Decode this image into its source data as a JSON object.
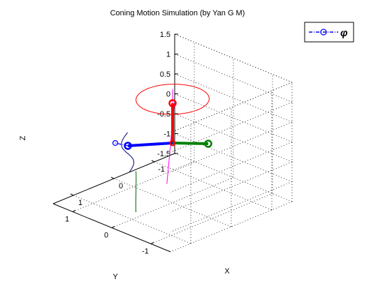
{
  "chart_data": {
    "type": "3d-line",
    "title": "Coning Motion Simulation (by Yan G M)",
    "xlabel": "X",
    "ylabel": "Y",
    "zlabel": "Z",
    "xlim": [
      -1.5,
      1.5
    ],
    "ylim": [
      -1.5,
      1.5
    ],
    "zlim": [
      -1.5,
      1.5
    ],
    "xticks": [
      "-1",
      "0",
      "1"
    ],
    "yticks": [
      "-1",
      "0",
      "1"
    ],
    "zticks": [
      "1.5",
      "1",
      "0.5",
      "0",
      "-0.5",
      "-1",
      "-1.5"
    ],
    "grid": true,
    "legend": {
      "location": "top-right",
      "entries": [
        {
          "label": "φ",
          "color": "#0000ff"
        }
      ]
    },
    "series": [
      {
        "axis": "Z",
        "color": "#ff0000",
        "tip": [
          0,
          0,
          1
        ],
        "description": "circle at z=1 plus red rod"
      },
      {
        "axis": "X",
        "color": "#008000",
        "tip": [
          1,
          0,
          0
        ]
      },
      {
        "axis": "Y",
        "color": "#0000ff",
        "tip": [
          0,
          1,
          0
        ]
      }
    ]
  }
}
